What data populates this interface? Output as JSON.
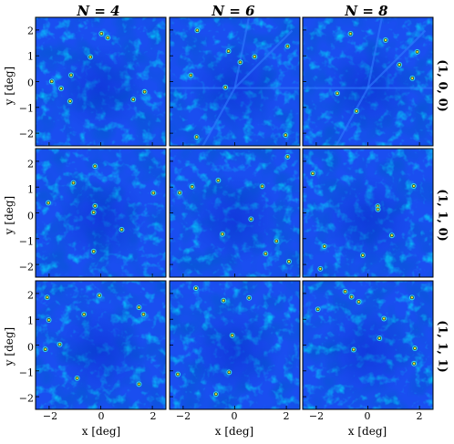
{
  "columns": [
    {
      "label": "N = 4"
    },
    {
      "label": "N = 6"
    },
    {
      "label": "N = 8"
    }
  ],
  "rows": [
    {
      "label": "(1, 0, 0)"
    },
    {
      "label": "(1, 1, 0)"
    },
    {
      "label": "(1, 1, 1)"
    }
  ],
  "axes": {
    "xlabel": "x [deg]",
    "ylabel": "y [deg]",
    "xticks": [
      "−2",
      "0",
      "2"
    ],
    "yticks": [
      "2",
      "1",
      "0",
      "−1",
      "−2"
    ]
  },
  "colors": {
    "background_map": "#1a4ef0",
    "low": "#0a2acc",
    "mid": "#2f7bff",
    "high": "#35d5e8",
    "peak": "#f2f23a"
  }
}
